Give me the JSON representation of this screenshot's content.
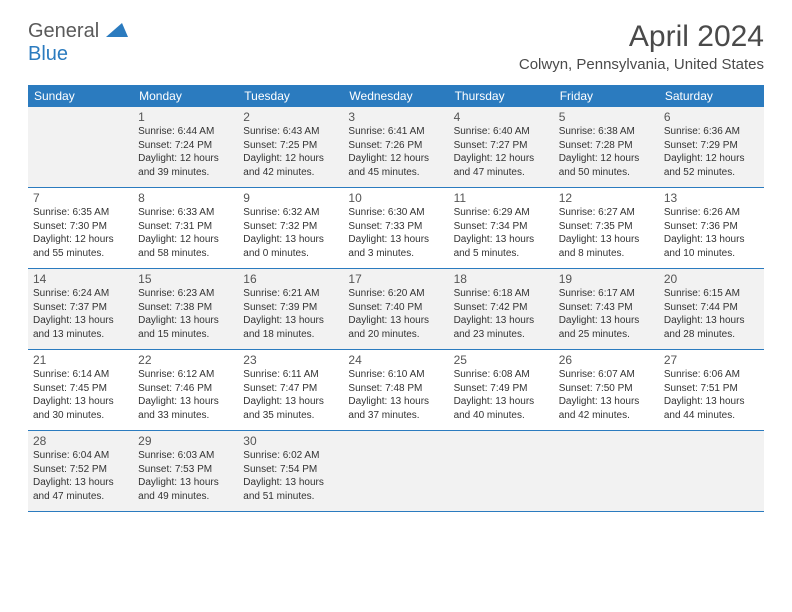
{
  "logo": {
    "general": "General",
    "blue": "Blue"
  },
  "title": "April 2024",
  "location": "Colwyn, Pennsylvania, United States",
  "weekdays": [
    "Sunday",
    "Monday",
    "Tuesday",
    "Wednesday",
    "Thursday",
    "Friday",
    "Saturday"
  ],
  "colors": {
    "header_bg": "#2b7bbf",
    "header_fg": "#ffffff",
    "shaded_bg": "#f2f2f2",
    "text": "#333333",
    "rule": "#2b7bbf"
  },
  "weeks": [
    {
      "shaded": true,
      "days": [
        null,
        {
          "n": "1",
          "sr": "6:44 AM",
          "ss": "7:24 PM",
          "dl": "12 hours and 39 minutes."
        },
        {
          "n": "2",
          "sr": "6:43 AM",
          "ss": "7:25 PM",
          "dl": "12 hours and 42 minutes."
        },
        {
          "n": "3",
          "sr": "6:41 AM",
          "ss": "7:26 PM",
          "dl": "12 hours and 45 minutes."
        },
        {
          "n": "4",
          "sr": "6:40 AM",
          "ss": "7:27 PM",
          "dl": "12 hours and 47 minutes."
        },
        {
          "n": "5",
          "sr": "6:38 AM",
          "ss": "7:28 PM",
          "dl": "12 hours and 50 minutes."
        },
        {
          "n": "6",
          "sr": "6:36 AM",
          "ss": "7:29 PM",
          "dl": "12 hours and 52 minutes."
        }
      ]
    },
    {
      "shaded": false,
      "days": [
        {
          "n": "7",
          "sr": "6:35 AM",
          "ss": "7:30 PM",
          "dl": "12 hours and 55 minutes."
        },
        {
          "n": "8",
          "sr": "6:33 AM",
          "ss": "7:31 PM",
          "dl": "12 hours and 58 minutes."
        },
        {
          "n": "9",
          "sr": "6:32 AM",
          "ss": "7:32 PM",
          "dl": "13 hours and 0 minutes."
        },
        {
          "n": "10",
          "sr": "6:30 AM",
          "ss": "7:33 PM",
          "dl": "13 hours and 3 minutes."
        },
        {
          "n": "11",
          "sr": "6:29 AM",
          "ss": "7:34 PM",
          "dl": "13 hours and 5 minutes."
        },
        {
          "n": "12",
          "sr": "6:27 AM",
          "ss": "7:35 PM",
          "dl": "13 hours and 8 minutes."
        },
        {
          "n": "13",
          "sr": "6:26 AM",
          "ss": "7:36 PM",
          "dl": "13 hours and 10 minutes."
        }
      ]
    },
    {
      "shaded": true,
      "days": [
        {
          "n": "14",
          "sr": "6:24 AM",
          "ss": "7:37 PM",
          "dl": "13 hours and 13 minutes."
        },
        {
          "n": "15",
          "sr": "6:23 AM",
          "ss": "7:38 PM",
          "dl": "13 hours and 15 minutes."
        },
        {
          "n": "16",
          "sr": "6:21 AM",
          "ss": "7:39 PM",
          "dl": "13 hours and 18 minutes."
        },
        {
          "n": "17",
          "sr": "6:20 AM",
          "ss": "7:40 PM",
          "dl": "13 hours and 20 minutes."
        },
        {
          "n": "18",
          "sr": "6:18 AM",
          "ss": "7:42 PM",
          "dl": "13 hours and 23 minutes."
        },
        {
          "n": "19",
          "sr": "6:17 AM",
          "ss": "7:43 PM",
          "dl": "13 hours and 25 minutes."
        },
        {
          "n": "20",
          "sr": "6:15 AM",
          "ss": "7:44 PM",
          "dl": "13 hours and 28 minutes."
        }
      ]
    },
    {
      "shaded": false,
      "days": [
        {
          "n": "21",
          "sr": "6:14 AM",
          "ss": "7:45 PM",
          "dl": "13 hours and 30 minutes."
        },
        {
          "n": "22",
          "sr": "6:12 AM",
          "ss": "7:46 PM",
          "dl": "13 hours and 33 minutes."
        },
        {
          "n": "23",
          "sr": "6:11 AM",
          "ss": "7:47 PM",
          "dl": "13 hours and 35 minutes."
        },
        {
          "n": "24",
          "sr": "6:10 AM",
          "ss": "7:48 PM",
          "dl": "13 hours and 37 minutes."
        },
        {
          "n": "25",
          "sr": "6:08 AM",
          "ss": "7:49 PM",
          "dl": "13 hours and 40 minutes."
        },
        {
          "n": "26",
          "sr": "6:07 AM",
          "ss": "7:50 PM",
          "dl": "13 hours and 42 minutes."
        },
        {
          "n": "27",
          "sr": "6:06 AM",
          "ss": "7:51 PM",
          "dl": "13 hours and 44 minutes."
        }
      ]
    },
    {
      "shaded": true,
      "days": [
        {
          "n": "28",
          "sr": "6:04 AM",
          "ss": "7:52 PM",
          "dl": "13 hours and 47 minutes."
        },
        {
          "n": "29",
          "sr": "6:03 AM",
          "ss": "7:53 PM",
          "dl": "13 hours and 49 minutes."
        },
        {
          "n": "30",
          "sr": "6:02 AM",
          "ss": "7:54 PM",
          "dl": "13 hours and 51 minutes."
        },
        null,
        null,
        null,
        null
      ]
    }
  ],
  "labels": {
    "sunrise": "Sunrise:",
    "sunset": "Sunset:",
    "daylight": "Daylight:"
  }
}
